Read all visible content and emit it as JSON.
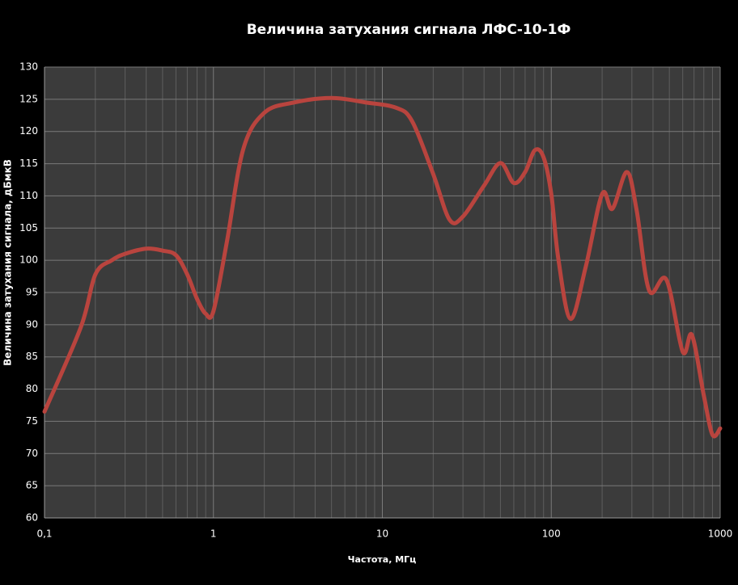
{
  "chart_data": {
    "type": "line",
    "title": "Величина затухания сигнала ЛФС-10-1Ф",
    "x_label": "Частота, МГц",
    "y_label": "Величина затухания сигнала, дБмкВ",
    "x_scale": "log",
    "grid": true,
    "minor_grid": true,
    "xlim": [
      0.1,
      1000
    ],
    "xticks": [
      {
        "value": 0.1,
        "label": "0,1"
      },
      1,
      10,
      100,
      1000
    ],
    "ylim": [
      60,
      130
    ],
    "yticks": [
      60,
      65,
      70,
      75,
      80,
      85,
      90,
      95,
      100,
      105,
      110,
      115,
      120,
      125,
      130
    ],
    "series": [
      {
        "color": "#b9443e",
        "x": [
          0.1,
          0.164,
          0.2,
          0.25,
          0.3,
          0.4,
          0.5,
          0.6,
          0.7,
          0.8,
          0.9,
          1,
          1.2,
          1.5,
          2,
          3,
          5,
          8,
          12,
          15,
          20,
          25,
          30,
          40,
          50,
          60,
          70,
          80,
          90,
          100,
          110,
          130,
          160,
          200,
          230,
          280,
          320,
          380,
          480,
          600,
          680,
          800,
          900,
          1000
        ],
        "values": [
          76.5,
          89.6,
          97.8,
          100,
          101,
          101.8,
          101.5,
          100.8,
          97.8,
          94,
          91.7,
          92.1,
          102.8,
          117.2,
          122.9,
          124.5,
          125.2,
          124.5,
          123.7,
          121.6,
          113.4,
          106.3,
          106.8,
          111.6,
          115.1,
          112,
          113.7,
          117.1,
          116,
          110.3,
          100.3,
          90.9,
          99,
          110.3,
          108,
          113.7,
          107.8,
          95.3,
          97,
          85.8,
          88.4,
          79,
          72.9,
          73.9
        ]
      }
    ]
  }
}
